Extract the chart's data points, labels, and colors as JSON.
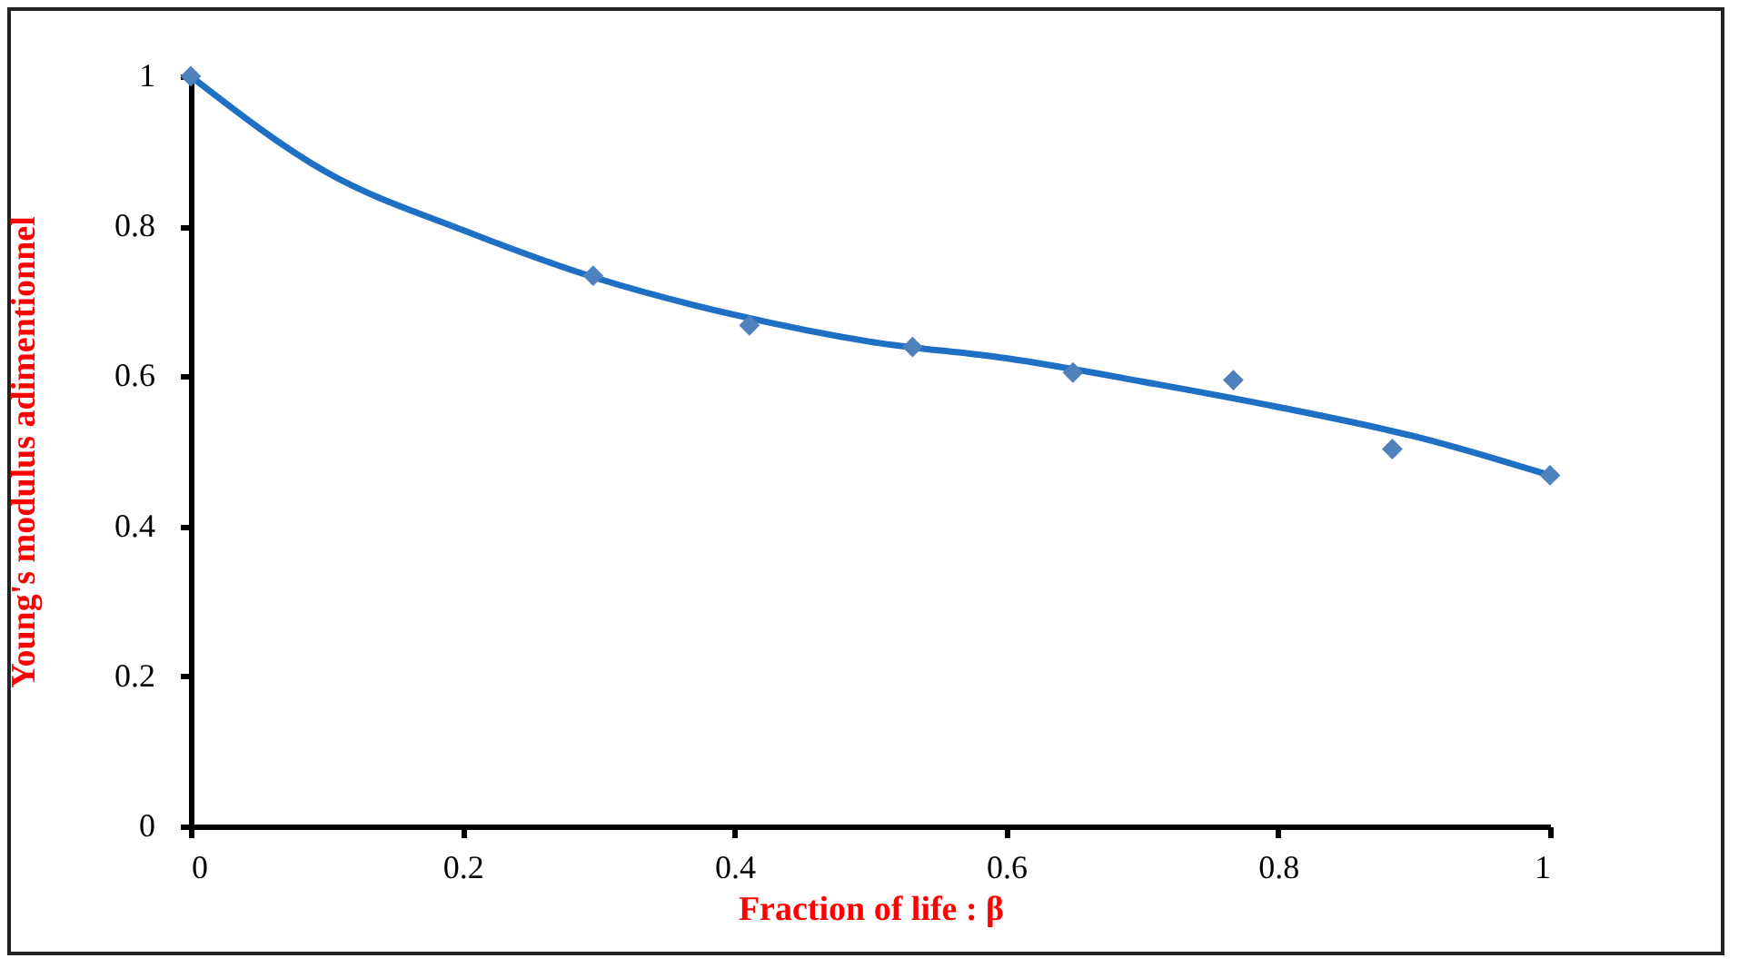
{
  "chart_data": {
    "type": "scatter",
    "xlabel": "Fraction of life : β",
    "ylabel": "Young's modulus adimentionnel",
    "xlim": [
      0,
      1
    ],
    "xticks": [
      0,
      0.2,
      0.4,
      0.6,
      0.8,
      1
    ],
    "ylim": [
      0,
      1
    ],
    "yticks": [
      0,
      0.2,
      0.4,
      0.6,
      0.8,
      1
    ],
    "grid": false,
    "series": [
      {
        "color": "#4f81bd",
        "marker": "diamond",
        "x": [
          0,
          0.296,
          0.411,
          0.531,
          0.649,
          0.767,
          0.884,
          1.0
        ],
        "values": [
          1.0,
          0.734,
          0.668,
          0.639,
          0.605,
          0.595,
          0.503,
          0.468
        ]
      },
      {
        "type": "line",
        "color": "#1f6fc5",
        "line_style": "solid",
        "marker": "none",
        "x": [
          0,
          0.1,
          0.2,
          0.3,
          0.4,
          0.5,
          0.6,
          0.7,
          0.8,
          0.9,
          1.0
        ],
        "values": [
          1.0,
          0.872,
          0.795,
          0.73,
          0.682,
          0.646,
          0.624,
          0.593,
          0.559,
          0.52,
          0.468
        ]
      }
    ]
  }
}
